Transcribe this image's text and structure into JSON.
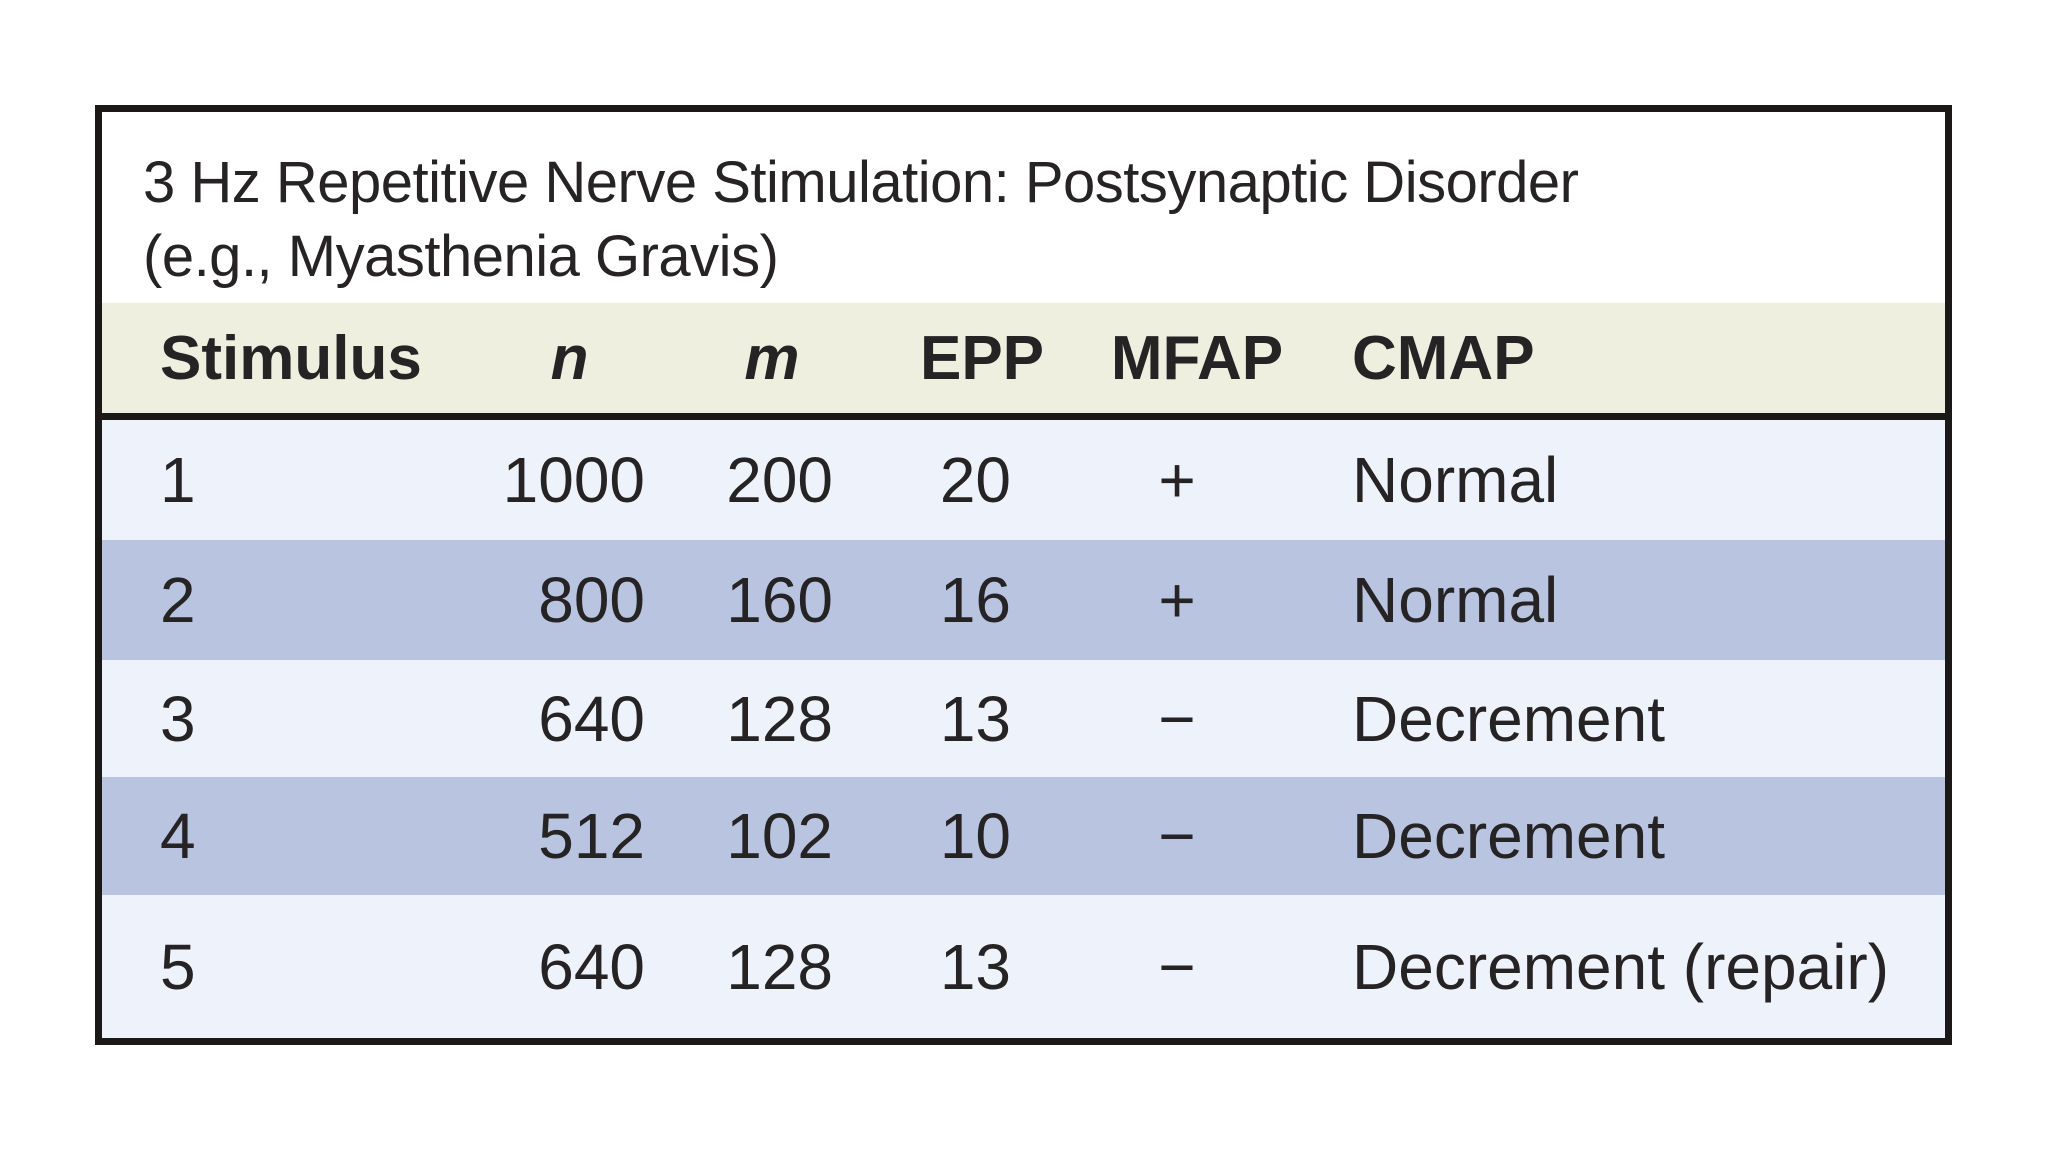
{
  "table": {
    "title_line1": "3 Hz Repetitive Nerve Stimulation: Postsynaptic Disorder",
    "title_line2": "(e.g., Myasthenia Gravis)",
    "columns": {
      "stimulus": "Stimulus",
      "n": "n",
      "m": "m",
      "epp": "EPP",
      "mfap": "MFAP",
      "cmap": "CMAP"
    },
    "rows": [
      {
        "stimulus": "1",
        "n": "1000",
        "m": "200",
        "epp": "20",
        "mfap": "+",
        "cmap": "Normal"
      },
      {
        "stimulus": "2",
        "n": "800",
        "m": "160",
        "epp": "16",
        "mfap": "+",
        "cmap": "Normal"
      },
      {
        "stimulus": "3",
        "n": "640",
        "m": "128",
        "epp": "13",
        "mfap": "−",
        "cmap": "Decrement"
      },
      {
        "stimulus": "4",
        "n": "512",
        "m": "102",
        "epp": "10",
        "mfap": "−",
        "cmap": "Decrement"
      },
      {
        "stimulus": "5",
        "n": "640",
        "m": "128",
        "epp": "13",
        "mfap": "−",
        "cmap": "Decrement (repair)"
      }
    ],
    "colors": {
      "border": "#1b1918",
      "text": "#262325",
      "header_bg": "#eeefdf",
      "row_light": "#eef3fb",
      "row_dark": "#b9c4e0",
      "page_bg": "#ffffff"
    }
  }
}
